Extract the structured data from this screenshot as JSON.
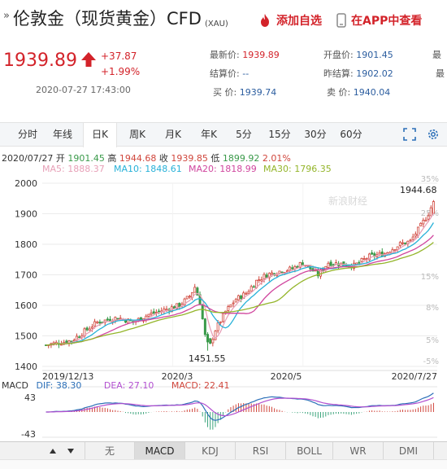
{
  "header": {
    "marker": "»",
    "title": "伦敦金（现货黄金）CFD",
    "code": "(XAU)",
    "add_watch_label": "添加自选",
    "app_view_label": "在APP中查看"
  },
  "quote": {
    "price": "1939.89",
    "change": "+37.87",
    "change_pct": "+1.99%",
    "time": "2020-07-27 17:43:00",
    "fields": {
      "latest_label": "最新价:",
      "latest_value": "1939.89",
      "settle_label": "结算价:",
      "settle_value": "--",
      "bid_label": "买  价:",
      "bid_value": "1939.74",
      "open_label": "开盘价:",
      "open_value": "1901.45",
      "prev_label": "昨结算:",
      "prev_value": "1902.02",
      "ask_label": "卖  价:",
      "ask_value": "1940.04",
      "high_label": "最",
      "low_label": "最"
    }
  },
  "periods": [
    "分时",
    "年线",
    "日K",
    "周K",
    "月K",
    "年K",
    "5分",
    "15分",
    "30分",
    "60分"
  ],
  "active_period": "日K",
  "ohlc": {
    "date": "2020/07/27",
    "open_label": "开",
    "open": "1901.45",
    "high_label": "高",
    "high": "1944.68",
    "close_label": "收",
    "close": "1939.85",
    "low_label": "低",
    "low": "1899.92",
    "pct": "2.01%"
  },
  "ma": [
    {
      "label": "MA5:",
      "value": "1888.37",
      "color": "#e7a0b7"
    },
    {
      "label": "MA10:",
      "value": "1848.61",
      "color": "#27b1d8"
    },
    {
      "label": "MA20:",
      "value": "1818.99",
      "color": "#d0469e"
    },
    {
      "label": "MA30:",
      "value": "1796.35",
      "color": "#94b52a"
    }
  ],
  "watermark": "新浪财经",
  "chart_data": {
    "type": "candlestick",
    "y_ticks": [
      "2000",
      "1900",
      "1800",
      "1700",
      "1600",
      "1500",
      "1400"
    ],
    "y_range": [
      1400,
      2000
    ],
    "pct_ticks": [
      "35%",
      "25%",
      "15%",
      "8%",
      "5%",
      "-5%"
    ],
    "x_labels": [
      "2019/12/13",
      "2020/3",
      "2020/5",
      "2020/7/27"
    ],
    "high_annotation": "1944.68",
    "low_annotation": "1451.55",
    "up_color": "#d0463c",
    "down_color": "#3a9a4a",
    "macd": {
      "dif_label": "DIF:",
      "dif": "38.30",
      "dea_label": "DEA:",
      "dea": "27.10",
      "macd_label": "MACD:",
      "macd": "22.41",
      "y_top": "43",
      "y_bottom": "-43",
      "title": "MACD"
    }
  },
  "indicators": [
    "无",
    "MACD",
    "KDJ",
    "RSI",
    "BOLL",
    "WR",
    "DMI"
  ],
  "active_indicator": "MACD"
}
